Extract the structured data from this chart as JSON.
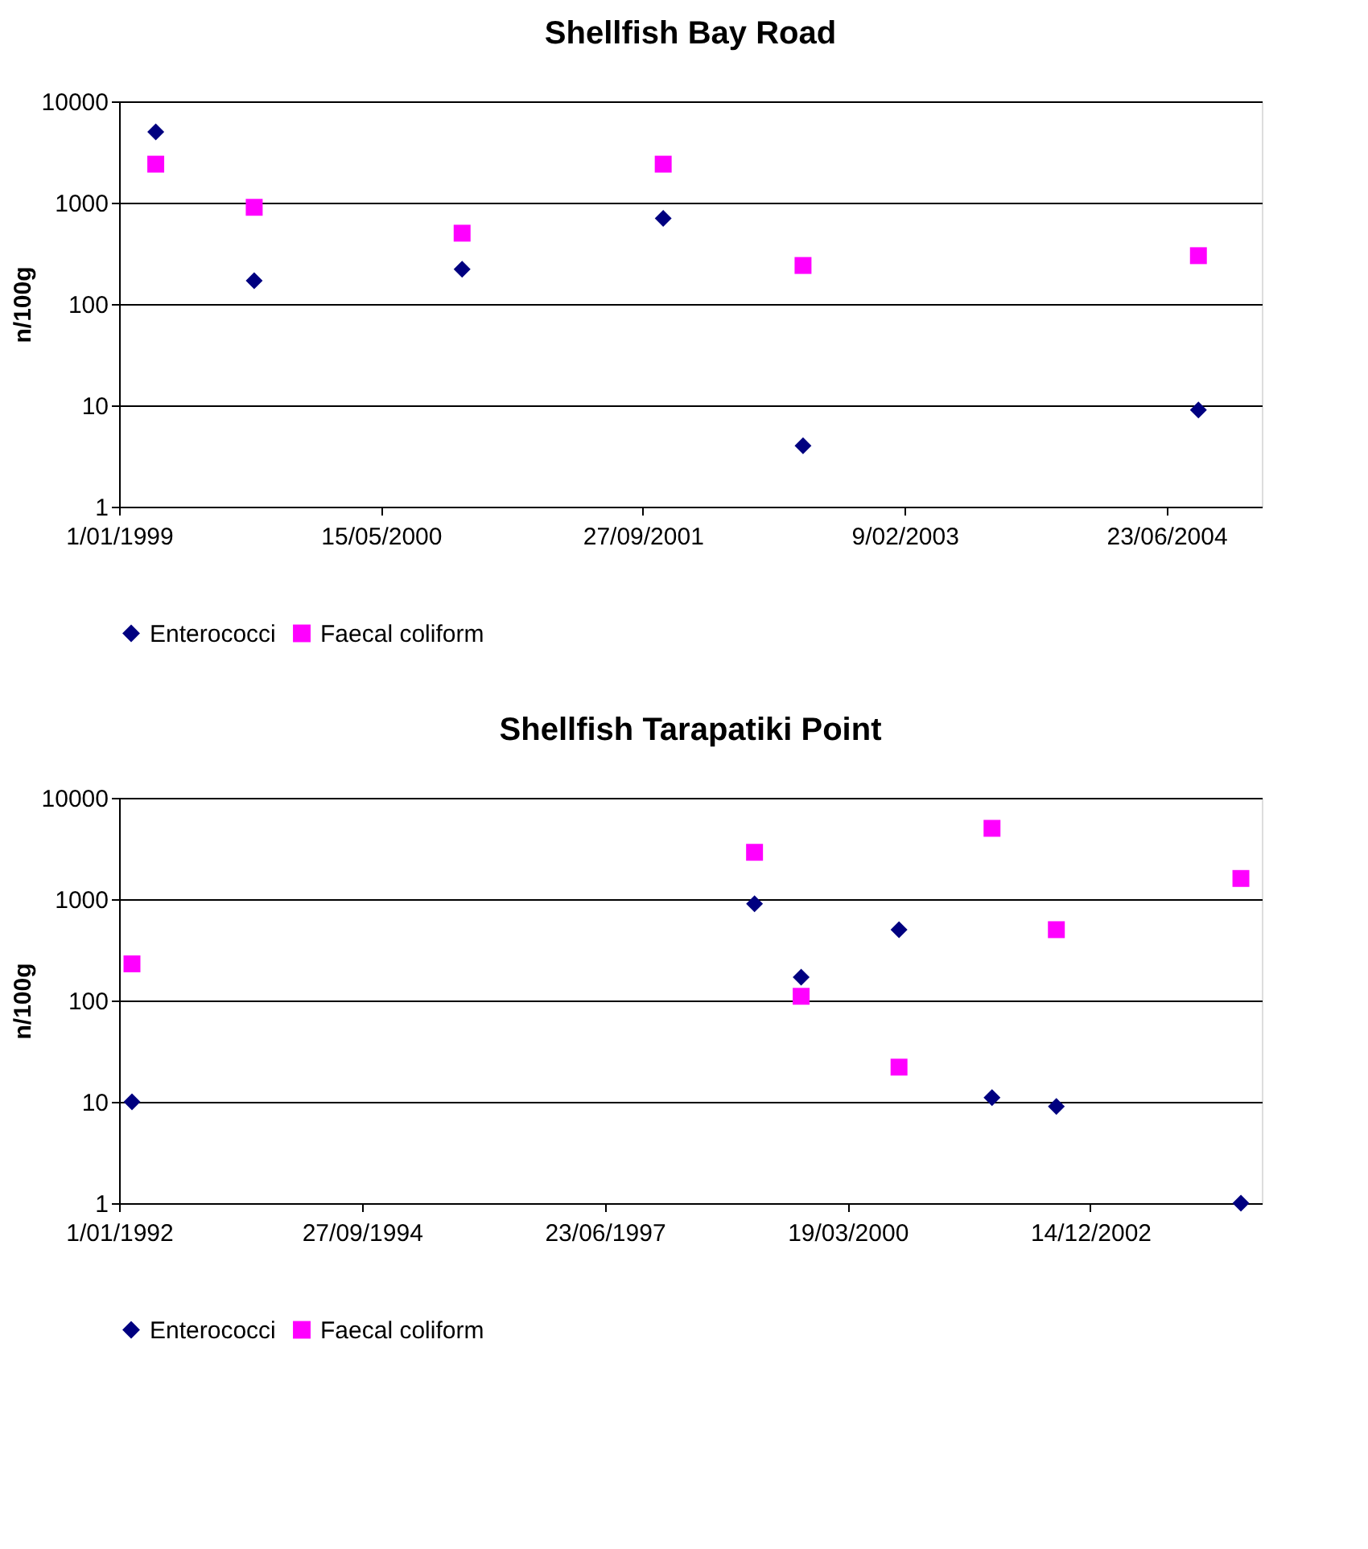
{
  "chart_data": [
    {
      "type": "scatter",
      "title": "Shellfish Bay Road",
      "ylabel": "n/100g",
      "log": "y",
      "grid": "y",
      "legend": "bottom",
      "x": [
        "1999-03-12",
        "1999-09-16",
        "2000-10-17",
        "2001-11-05",
        "2002-07-30",
        "2004-08-23"
      ],
      "series": [
        {
          "name": "Enterococci",
          "color": "#000080",
          "marker": "diamond",
          "values": [
            5000,
            170,
            220,
            700,
            4,
            9
          ]
        },
        {
          "name": "Faecal coliform",
          "color": "#ff00ff",
          "marker": "square",
          "values": [
            2400,
            900,
            500,
            2400,
            240,
            300
          ]
        }
      ],
      "xlim": [
        "1999-01-01",
        "2004-12-22"
      ],
      "xticks": [
        {
          "value": "1999-01-01",
          "label": "1/01/1999"
        },
        {
          "value": "2000-05-15",
          "label": "15/05/2000"
        },
        {
          "value": "2001-09-27",
          "label": "27/09/2001"
        },
        {
          "value": "2003-02-09",
          "label": "9/02/2003"
        },
        {
          "value": "2004-06-23",
          "label": "23/06/2004"
        }
      ],
      "ylim": [
        1,
        10000
      ],
      "yticks": [
        1,
        10,
        100,
        1000,
        10000
      ]
    },
    {
      "type": "scatter",
      "title": "Shellfish Tarapatiki Point",
      "ylabel": "n/100g",
      "log": "y",
      "grid": "y",
      "legend": "bottom",
      "x": [
        "1992-02-23",
        "1999-03-02",
        "1999-09-10",
        "2000-10-17",
        "2001-11-04",
        "2002-07-27",
        "2004-08-25"
      ],
      "series": [
        {
          "name": "Enterococci",
          "color": "#000080",
          "marker": "diamond",
          "values": [
            10,
            900,
            170,
            500,
            11,
            9,
            1
          ]
        },
        {
          "name": "Faecal coliform",
          "color": "#ff00ff",
          "marker": "square",
          "values": [
            230,
            2900,
            110,
            22,
            5000,
            500,
            1600
          ]
        }
      ],
      "xlim": [
        "1992-01-01",
        "2004-11-19"
      ],
      "xticks": [
        {
          "value": "1992-01-01",
          "label": "1/01/1992"
        },
        {
          "value": "1994-09-27",
          "label": "27/09/1994"
        },
        {
          "value": "1997-06-23",
          "label": "23/06/1997"
        },
        {
          "value": "2000-03-19",
          "label": "19/03/2000"
        },
        {
          "value": "2002-12-14",
          "label": "14/12/2002"
        }
      ],
      "ylim": [
        1,
        10000
      ],
      "yticks": [
        1,
        10,
        100,
        1000,
        10000
      ]
    }
  ]
}
